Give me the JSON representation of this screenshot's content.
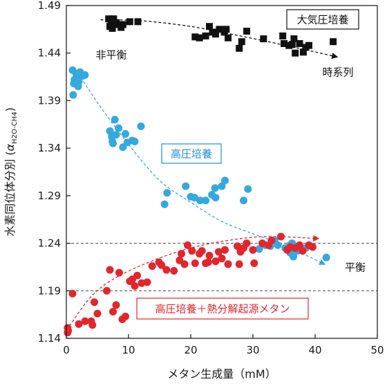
{
  "chart_data": {
    "type": "scatter",
    "xlabel": "メタン生成量（mM）",
    "ylabel": "水素同位体分別",
    "ylabel_symbol": "α",
    "ylabel_subscript": "H2O-CH4",
    "xlim": [
      0,
      50
    ],
    "ylim": [
      1.14,
      1.49
    ],
    "xticks": [
      0,
      10,
      20,
      30,
      40,
      50
    ],
    "yticks": [
      1.14,
      1.19,
      1.24,
      1.29,
      1.34,
      1.39,
      1.44,
      1.49
    ],
    "hlines": [
      1.24,
      1.19
    ],
    "series": [
      {
        "name": "大気圧培養",
        "marker": "square",
        "color": "#111111",
        "points": [
          [
            6.8,
            1.476
          ],
          [
            7.2,
            1.474
          ],
          [
            7.6,
            1.476
          ],
          [
            8.0,
            1.472
          ],
          [
            7.0,
            1.468
          ],
          [
            7.4,
            1.466
          ],
          [
            8.2,
            1.47
          ],
          [
            8.8,
            1.467
          ],
          [
            9.1,
            1.47
          ],
          [
            10.2,
            1.473
          ],
          [
            11.5,
            1.473
          ],
          [
            20.7,
            1.457
          ],
          [
            21.4,
            1.456
          ],
          [
            22.4,
            1.458
          ],
          [
            23.0,
            1.468
          ],
          [
            23.5,
            1.462
          ],
          [
            24.0,
            1.46
          ],
          [
            24.6,
            1.465
          ],
          [
            25.4,
            1.462
          ],
          [
            25.7,
            1.465
          ],
          [
            26.0,
            1.456
          ],
          [
            27.8,
            1.445
          ],
          [
            28.2,
            1.452
          ],
          [
            29.0,
            1.463
          ],
          [
            31.7,
            1.455
          ],
          [
            34.8,
            1.458
          ],
          [
            35.0,
            1.45
          ],
          [
            35.8,
            1.448
          ],
          [
            36.3,
            1.449
          ],
          [
            36.6,
            1.455
          ],
          [
            36.8,
            1.44
          ],
          [
            37.5,
            1.45
          ],
          [
            38.1,
            1.441
          ],
          [
            38.5,
            1.446
          ],
          [
            39.0,
            1.448
          ],
          [
            42.9,
            1.452
          ]
        ]
      },
      {
        "name": "高圧培養",
        "marker": "circle",
        "color": "#35a8de",
        "points": [
          [
            1.0,
            1.422
          ],
          [
            1.3,
            1.412
          ],
          [
            1.6,
            1.418
          ],
          [
            1.2,
            1.408
          ],
          [
            1.8,
            1.415
          ],
          [
            2.2,
            1.42
          ],
          [
            2.6,
            1.416
          ],
          [
            3.0,
            1.417
          ],
          [
            2.0,
            1.41
          ],
          [
            1.9,
            1.405
          ],
          [
            1.1,
            1.396
          ],
          [
            7.0,
            1.358
          ],
          [
            7.3,
            1.352
          ],
          [
            7.4,
            1.347
          ],
          [
            8.0,
            1.354
          ],
          [
            7.5,
            1.345
          ],
          [
            8.4,
            1.361
          ],
          [
            9.1,
            1.341
          ],
          [
            9.5,
            1.355
          ],
          [
            7.8,
            1.37
          ],
          [
            9.8,
            1.346
          ],
          [
            10.6,
            1.348
          ],
          [
            11.0,
            1.347
          ],
          [
            12.0,
            1.363
          ],
          [
            15.8,
            1.281
          ],
          [
            16.2,
            1.293
          ],
          [
            19.2,
            1.3
          ],
          [
            20.0,
            1.289
          ],
          [
            20.6,
            1.288
          ],
          [
            21.5,
            1.285
          ],
          [
            22.4,
            1.285
          ],
          [
            23.4,
            1.291
          ],
          [
            23.9,
            1.298
          ],
          [
            24.0,
            1.288
          ],
          [
            25.0,
            1.3
          ],
          [
            25.5,
            1.306
          ],
          [
            28.5,
            1.285
          ],
          [
            29.2,
            1.297
          ],
          [
            31.0,
            1.234
          ],
          [
            32.0,
            1.238
          ],
          [
            32.8,
            1.237
          ],
          [
            33.5,
            1.243
          ],
          [
            34.0,
            1.238
          ],
          [
            35.2,
            1.235
          ],
          [
            36.0,
            1.238
          ],
          [
            36.3,
            1.24
          ],
          [
            36.8,
            1.235
          ],
          [
            37.2,
            1.232
          ],
          [
            37.6,
            1.234
          ],
          [
            38.5,
            1.235
          ],
          [
            39.0,
            1.238
          ],
          [
            41.8,
            1.225
          ],
          [
            36.0,
            1.23
          ],
          [
            36.5,
            1.226
          ]
        ]
      },
      {
        "name": "高圧培養＋熱分解起源メタン",
        "marker": "circle",
        "color": "#e1262d",
        "points": [
          [
            0.2,
            1.151
          ],
          [
            0.3,
            1.148
          ],
          [
            0.2,
            1.146
          ],
          [
            1.0,
            1.187
          ],
          [
            2.0,
            1.155
          ],
          [
            3.0,
            1.158
          ],
          [
            4.0,
            1.158
          ],
          [
            4.2,
            1.154
          ],
          [
            4.5,
            1.178
          ],
          [
            5.0,
            1.166
          ],
          [
            6.5,
            1.19
          ],
          [
            7.0,
            1.212
          ],
          [
            7.5,
            1.168
          ],
          [
            8.0,
            1.175
          ],
          [
            8.5,
            1.209
          ],
          [
            9.0,
            1.16
          ],
          [
            9.5,
            1.163
          ],
          [
            10.2,
            1.2
          ],
          [
            10.6,
            1.202
          ],
          [
            11.0,
            1.195
          ],
          [
            11.4,
            1.206
          ],
          [
            12.1,
            1.198
          ],
          [
            13.0,
            1.199
          ],
          [
            13.8,
            1.216
          ],
          [
            14.9,
            1.22
          ],
          [
            15.3,
            1.217
          ],
          [
            16.1,
            1.212
          ],
          [
            17.3,
            1.211
          ],
          [
            18.2,
            1.222
          ],
          [
            18.5,
            1.229
          ],
          [
            19.0,
            1.218
          ],
          [
            19.5,
            1.238
          ],
          [
            20.2,
            1.232
          ],
          [
            20.7,
            1.219
          ],
          [
            21.4,
            1.229
          ],
          [
            21.8,
            1.232
          ],
          [
            22.4,
            1.219
          ],
          [
            22.8,
            1.22
          ],
          [
            23.0,
            1.227
          ],
          [
            24.0,
            1.221
          ],
          [
            24.5,
            1.231
          ],
          [
            25.0,
            1.224
          ],
          [
            25.5,
            1.233
          ],
          [
            26.0,
            1.218
          ],
          [
            27.5,
            1.237
          ],
          [
            28.0,
            1.231
          ],
          [
            28.5,
            1.235
          ],
          [
            29.0,
            1.24
          ],
          [
            30.0,
            1.233
          ],
          [
            31.5,
            1.24
          ],
          [
            32.5,
            1.238
          ],
          [
            33.0,
            1.243
          ],
          [
            34.5,
            1.247
          ],
          [
            35.5,
            1.233
          ],
          [
            36.0,
            1.236
          ],
          [
            36.8,
            1.235
          ],
          [
            37.5,
            1.238
          ],
          [
            38.0,
            1.232
          ],
          [
            39.0,
            1.238
          ],
          [
            39.6,
            1.236
          ],
          [
            27.8,
            1.218
          ],
          [
            30.2,
            1.219
          ]
        ]
      }
    ],
    "trend_arrows": [
      {
        "series": "大気圧培養",
        "color": "#111111",
        "points": [
          [
            5.5,
            1.475
          ],
          [
            12,
            1.474
          ],
          [
            20,
            1.468
          ],
          [
            28,
            1.458
          ],
          [
            36,
            1.447
          ],
          [
            43.5,
            1.436
          ]
        ]
      },
      {
        "series": "高圧培養",
        "color": "#35a8de",
        "points": [
          [
            1.5,
            1.423
          ],
          [
            5,
            1.388
          ],
          [
            10,
            1.344
          ],
          [
            15,
            1.306
          ],
          [
            20,
            1.283
          ],
          [
            25,
            1.263
          ],
          [
            30,
            1.25
          ],
          [
            35,
            1.238
          ],
          [
            41.5,
            1.218
          ]
        ]
      },
      {
        "series": "高圧培養＋熱分解起源メタン",
        "color": "#e1262d",
        "points": [
          [
            0.5,
            1.153
          ],
          [
            4,
            1.184
          ],
          [
            8,
            1.204
          ],
          [
            14,
            1.222
          ],
          [
            20,
            1.235
          ],
          [
            26,
            1.243
          ],
          [
            32,
            1.247
          ],
          [
            40.5,
            1.245
          ]
        ]
      }
    ],
    "annotations": [
      {
        "text": "大気圧培養",
        "boxed": true,
        "color": "#111111"
      },
      {
        "text": "非平衡",
        "boxed": false,
        "color": "#111111"
      },
      {
        "text": "時系列",
        "boxed": false,
        "color": "#111111"
      },
      {
        "text": "高圧培養",
        "boxed": true,
        "color": "#1f8ed0"
      },
      {
        "text": "平衡",
        "boxed": false,
        "color": "#111111"
      },
      {
        "text": "高圧培養＋熱分解起源メタン",
        "boxed": true,
        "color": "#e1262d"
      }
    ]
  }
}
